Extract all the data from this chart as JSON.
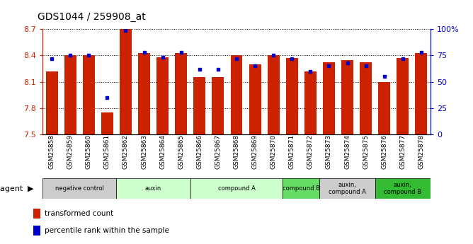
{
  "title": "GDS1044 / 259908_at",
  "samples": [
    "GSM25858",
    "GSM25859",
    "GSM25860",
    "GSM25861",
    "GSM25862",
    "GSM25863",
    "GSM25864",
    "GSM25865",
    "GSM25866",
    "GSM25867",
    "GSM25868",
    "GSM25869",
    "GSM25870",
    "GSM25871",
    "GSM25872",
    "GSM25873",
    "GSM25874",
    "GSM25875",
    "GSM25876",
    "GSM25877",
    "GSM25878"
  ],
  "transformed_count": [
    8.22,
    8.4,
    8.4,
    7.75,
    8.7,
    8.43,
    8.38,
    8.43,
    8.15,
    8.15,
    8.4,
    8.3,
    8.4,
    8.37,
    8.22,
    8.32,
    8.35,
    8.32,
    8.1,
    8.37,
    8.43
  ],
  "percentile_rank": [
    72,
    75,
    75,
    35,
    99,
    78,
    73,
    78,
    62,
    62,
    72,
    65,
    75,
    72,
    60,
    65,
    68,
    65,
    55,
    72,
    78
  ],
  "ylim_left": [
    7.5,
    8.7
  ],
  "ylim_right": [
    0,
    100
  ],
  "yticks_left": [
    7.5,
    7.8,
    8.1,
    8.4,
    8.7
  ],
  "yticks_right": [
    0,
    25,
    50,
    75,
    100
  ],
  "bar_color": "#cc2200",
  "dot_color": "#0000cc",
  "groups": [
    {
      "label": "negative control",
      "start": 0,
      "end": 4,
      "color": "#cccccc"
    },
    {
      "label": "auxin",
      "start": 4,
      "end": 8,
      "color": "#ccffcc"
    },
    {
      "label": "compound A",
      "start": 8,
      "end": 13,
      "color": "#ccffcc"
    },
    {
      "label": "compound B",
      "start": 13,
      "end": 15,
      "color": "#66dd66"
    },
    {
      "label": "auxin,\ncompound A",
      "start": 15,
      "end": 18,
      "color": "#cccccc"
    },
    {
      "label": "auxin,\ncompound B",
      "start": 18,
      "end": 21,
      "color": "#33bb33"
    }
  ],
  "legend_labels": [
    "transformed count",
    "percentile rank within the sample"
  ],
  "legend_colors": [
    "#cc2200",
    "#0000cc"
  ]
}
